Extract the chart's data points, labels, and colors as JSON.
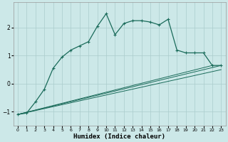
{
  "title": "",
  "xlabel": "Humidex (Indice chaleur)",
  "bg_color": "#cce8e8",
  "grid_color": "#aacccc",
  "line_color": "#1a6b5a",
  "xlim": [
    -0.5,
    23.5
  ],
  "ylim": [
    -1.5,
    2.9
  ],
  "yticks": [
    -1,
    0,
    1,
    2
  ],
  "xticks": [
    0,
    1,
    2,
    3,
    4,
    5,
    6,
    7,
    8,
    9,
    10,
    11,
    12,
    13,
    14,
    15,
    16,
    17,
    18,
    19,
    20,
    21,
    22,
    23
  ],
  "series_main": {
    "x": [
      0,
      1,
      2,
      3,
      4,
      5,
      6,
      7,
      8,
      9,
      10,
      11,
      12,
      13,
      14,
      15,
      16,
      17,
      18,
      19,
      20,
      21,
      22,
      23
    ],
    "y": [
      -1.1,
      -1.05,
      -0.65,
      -0.2,
      0.55,
      0.95,
      1.2,
      1.35,
      1.5,
      2.05,
      2.5,
      1.75,
      2.15,
      2.25,
      2.25,
      2.2,
      2.1,
      2.3,
      1.2,
      1.1,
      1.1,
      1.1,
      0.65,
      0.65
    ]
  },
  "series_line1": {
    "x": [
      0,
      23
    ],
    "y": [
      -1.1,
      0.65
    ]
  },
  "series_line2": {
    "x": [
      0,
      22
    ],
    "y": [
      -1.1,
      0.65
    ]
  },
  "series_line3": {
    "x": [
      0,
      23
    ],
    "y": [
      -1.1,
      0.5
    ]
  }
}
